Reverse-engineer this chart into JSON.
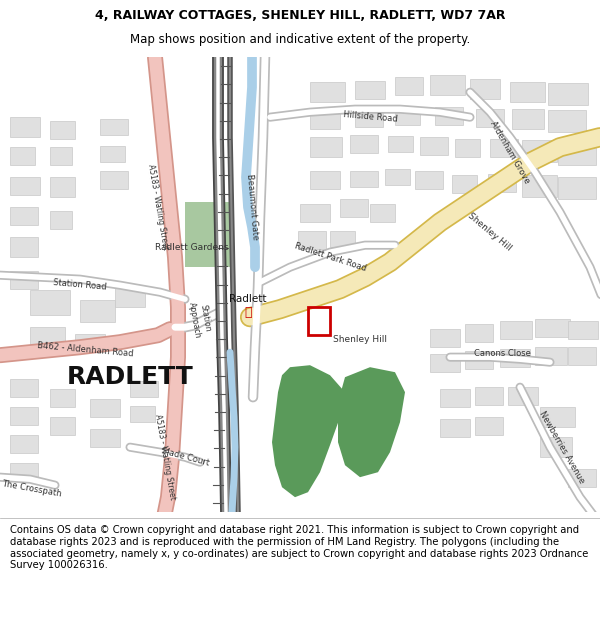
{
  "title_line1": "4, RAILWAY COTTAGES, SHENLEY HILL, RADLETT, WD7 7AR",
  "title_line2": "Map shows position and indicative extent of the property.",
  "footer": "Contains OS data © Crown copyright and database right 2021. This information is subject to Crown copyright and database rights 2023 and is reproduced with the permission of HM Land Registry. The polygons (including the associated geometry, namely x, y co-ordinates) are subject to Crown copyright and database rights 2023 Ordnance Survey 100026316.",
  "title_fontsize": 9.0,
  "footer_fontsize": 7.2,
  "map_bg": "#f5f5f5",
  "road_main_color": "#f5e9b8",
  "road_main_edge": "#d4b84a",
  "road_pink_color": "#f2c4be",
  "road_pink_edge": "#d4958a",
  "building_fill": "#e0e0e0",
  "building_edge": "#c8c8c8",
  "water_color": "#aacfe8",
  "green_color": "#5a9a5a",
  "green_light": "#a8c8a0",
  "property_box_color": "#cc0000",
  "radlett_label_color": "#111111"
}
